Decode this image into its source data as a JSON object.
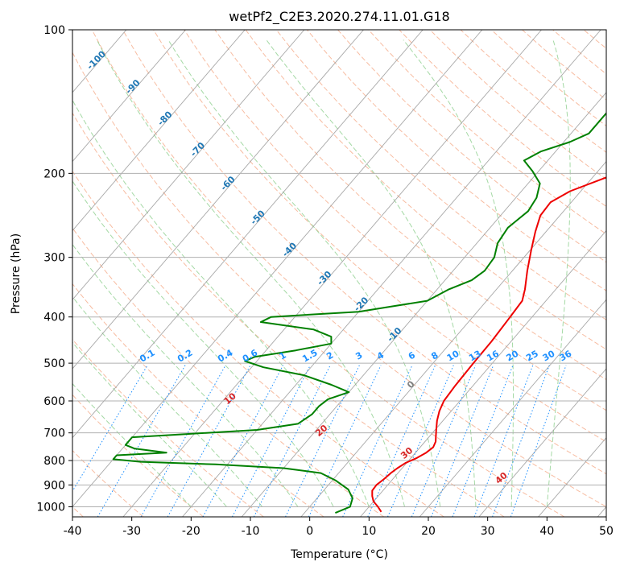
{
  "chart_data": {
    "type": "line",
    "title": "wetPf2_C2E3.2020.274.11.01.G18",
    "xlabel": "Temperature (°C)",
    "ylabel": "Pressure (hPa)",
    "xlim": [
      -40,
      50
    ],
    "ylim": [
      1050,
      100
    ],
    "y_scale": "log",
    "grid": true,
    "x_ticks": [
      -40,
      -30,
      -20,
      -10,
      0,
      10,
      20,
      30,
      40,
      50
    ],
    "y_ticks": [
      100,
      200,
      300,
      400,
      500,
      600,
      700,
      800,
      900,
      1000
    ],
    "colors": {
      "temperature": "#ee0000",
      "dewpoint": "#008000",
      "isotherm": "#999999",
      "dry_adiabat": "#f4a582",
      "moist_adiabat": "#8fcf8f",
      "mixing_ratio": "#1e90ff",
      "isotherm_label": "#1f77b4",
      "dry_adiabat_label": "#d62728"
    },
    "series": [
      {
        "points": [
          {
            "p": 1025,
            "t": 12.8
          },
          {
            "p": 1000,
            "t": 11.5
          },
          {
            "p": 975,
            "t": 10.0
          },
          {
            "p": 950,
            "t": 9.0
          },
          {
            "p": 925,
            "t": 8.2
          },
          {
            "p": 900,
            "t": 8.1
          },
          {
            "p": 875,
            "t": 8.5
          },
          {
            "p": 850,
            "t": 8.8
          },
          {
            "p": 830,
            "t": 9.2
          },
          {
            "p": 810,
            "t": 9.8
          },
          {
            "p": 790,
            "t": 11.0
          },
          {
            "p": 770,
            "t": 11.8
          },
          {
            "p": 750,
            "t": 12.2
          },
          {
            "p": 730,
            "t": 11.8
          },
          {
            "p": 710,
            "t": 11.0
          },
          {
            "p": 690,
            "t": 10.2
          },
          {
            "p": 660,
            "t": 9.0
          },
          {
            "p": 630,
            "t": 8.0
          },
          {
            "p": 600,
            "t": 7.3
          },
          {
            "p": 560,
            "t": 7.0
          },
          {
            "p": 500,
            "t": 6.8
          },
          {
            "p": 450,
            "t": 6.7
          },
          {
            "p": 400,
            "t": 6.3
          },
          {
            "p": 370,
            "t": 6.0
          },
          {
            "p": 350,
            "t": 4.8
          },
          {
            "p": 320,
            "t": 2.5
          },
          {
            "p": 290,
            "t": 0.2
          },
          {
            "p": 265,
            "t": -1.8
          },
          {
            "p": 245,
            "t": -3.3
          },
          {
            "p": 230,
            "t": -3.5
          },
          {
            "p": 218,
            "t": -1.8
          },
          {
            "p": 205,
            "t": 2.0
          },
          {
            "p": 195,
            "t": 5.0
          },
          {
            "p": 180,
            "t": 6.0
          },
          {
            "p": 165,
            "t": 6.3
          },
          {
            "p": 150,
            "t": 8.0
          },
          {
            "p": 138,
            "t": 11.5
          },
          {
            "p": 128,
            "t": 14.0
          },
          {
            "p": 120,
            "t": 15.0
          },
          {
            "p": 112,
            "t": 16.0
          },
          {
            "p": 105,
            "t": 18.5
          },
          {
            "p": 100,
            "t": 20.8
          }
        ]
      },
      {
        "points": [
          {
            "p": 1030,
            "t": 5.2
          },
          {
            "p": 1000,
            "t": 6.8
          },
          {
            "p": 960,
            "t": 6.0
          },
          {
            "p": 920,
            "t": 4.0
          },
          {
            "p": 880,
            "t": 0.5
          },
          {
            "p": 850,
            "t": -3.0
          },
          {
            "p": 830,
            "t": -10.0
          },
          {
            "p": 815,
            "t": -22.0
          },
          {
            "p": 805,
            "t": -35.0
          },
          {
            "p": 795,
            "t": -40.0
          },
          {
            "p": 780,
            "t": -40.0
          },
          {
            "p": 770,
            "t": -32.0
          },
          {
            "p": 755,
            "t": -38.0
          },
          {
            "p": 742,
            "t": -40.0
          },
          {
            "p": 715,
            "t": -40.0
          },
          {
            "p": 705,
            "t": -32.0
          },
          {
            "p": 690,
            "t": -20.0
          },
          {
            "p": 670,
            "t": -14.0
          },
          {
            "p": 640,
            "t": -13.0
          },
          {
            "p": 615,
            "t": -13.0
          },
          {
            "p": 595,
            "t": -12.5
          },
          {
            "p": 575,
            "t": -10.0
          },
          {
            "p": 555,
            "t": -14.0
          },
          {
            "p": 530,
            "t": -20.0
          },
          {
            "p": 510,
            "t": -28.0
          },
          {
            "p": 495,
            "t": -32.0
          },
          {
            "p": 485,
            "t": -31.0
          },
          {
            "p": 470,
            "t": -25.0
          },
          {
            "p": 455,
            "t": -20.0
          },
          {
            "p": 440,
            "t": -21.0
          },
          {
            "p": 425,
            "t": -25.0
          },
          {
            "p": 410,
            "t": -35.0
          },
          {
            "p": 400,
            "t": -34.0
          },
          {
            "p": 390,
            "t": -20.0
          },
          {
            "p": 370,
            "t": -10.0
          },
          {
            "p": 350,
            "t": -8.0
          },
          {
            "p": 335,
            "t": -5.5
          },
          {
            "p": 320,
            "t": -4.7
          },
          {
            "p": 300,
            "t": -5.0
          },
          {
            "p": 280,
            "t": -6.5
          },
          {
            "p": 260,
            "t": -7.0
          },
          {
            "p": 240,
            "t": -6.0
          },
          {
            "p": 225,
            "t": -6.5
          },
          {
            "p": 210,
            "t": -8.0
          },
          {
            "p": 198,
            "t": -11.0
          },
          {
            "p": 188,
            "t": -14.0
          },
          {
            "p": 180,
            "t": -12.5
          },
          {
            "p": 172,
            "t": -9.0
          },
          {
            "p": 165,
            "t": -7.0
          },
          {
            "p": 155,
            "t": -7.0
          },
          {
            "p": 140,
            "t": -7.0
          },
          {
            "p": 128,
            "t": -5.0
          },
          {
            "p": 118,
            "t": -2.0
          },
          {
            "p": 110,
            "t": 0.0
          },
          {
            "p": 100,
            "t": 2.0
          }
        ]
      }
    ],
    "isotherm_labels": [
      "-100",
      "-90",
      "-80",
      "-70",
      "-60",
      "-50",
      "-40",
      "-30",
      "-20",
      "-10",
      "0"
    ],
    "isotherm_label_values": [
      -100,
      -90,
      -80,
      -70,
      -60,
      -50,
      -40,
      -30,
      -20,
      -10,
      0
    ],
    "mixing_ratio_labels": [
      "0.1",
      "0.2",
      "0.4",
      "0.6",
      "1",
      "1.5",
      "2",
      "3",
      "4",
      "6",
      "8",
      "10",
      "13",
      "16",
      "20",
      "25",
      "30",
      "36"
    ],
    "mixing_ratio_values": [
      0.1,
      0.2,
      0.4,
      0.6,
      1,
      1.5,
      2,
      3,
      4,
      6,
      8,
      10,
      13,
      16,
      20,
      25,
      30,
      36
    ],
    "dry_adiabat_labels": [
      "10",
      "20",
      "30",
      "40"
    ],
    "dry_adiabat_label_values": [
      10,
      20,
      30,
      40
    ]
  }
}
